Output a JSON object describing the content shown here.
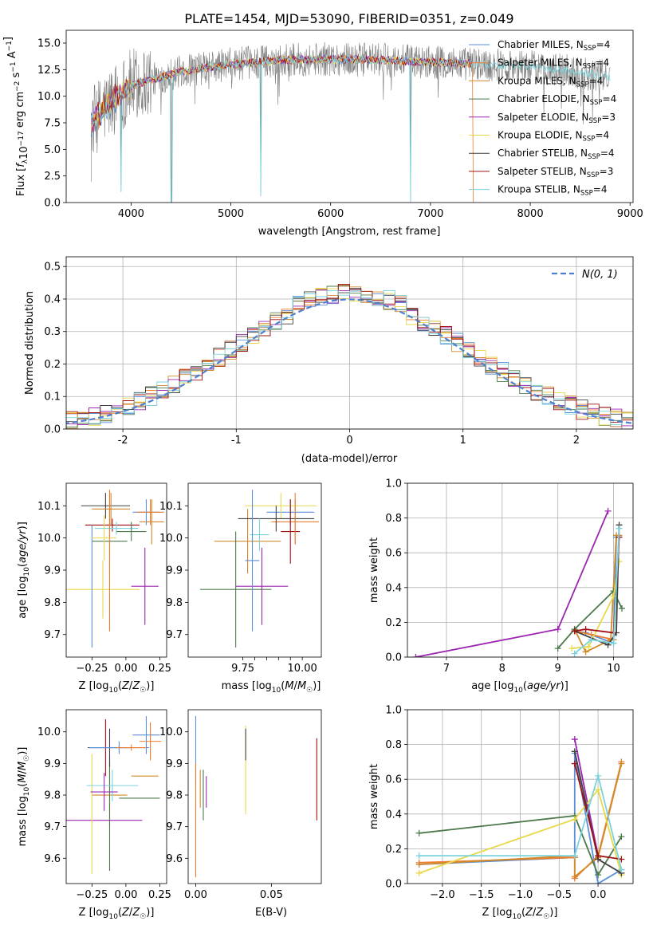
{
  "figure_title": "PLATE=1454, MJD=53090, FIBERID=0351, z=0.049",
  "series_names": [
    "Chabrier MILES, N_SSP=4",
    "Salpeter MILES, N_SSP=4",
    "Kroupa MILES, N_SSP=4",
    "Chabrier ELODIE, N_SSP=4",
    "Salpeter ELODIE, N_SSP=3",
    "Kroupa ELODIE, N_SSP=4",
    "Chabrier STELIB, N_SSP=4",
    "Salpeter STELIB, N_SSP=3",
    "Kroupa STELIB, N_SSP=4"
  ],
  "legend_labels": [
    {
      "pre": "Chabrier MILES, N",
      "sub": "SSP",
      "post": "=4"
    },
    {
      "pre": "Salpeter MILES, N",
      "sub": "SSP",
      "post": "=4"
    },
    {
      "pre": "Kroupa MILES, N",
      "sub": "SSP",
      "post": "=4"
    },
    {
      "pre": "Chabrier ELODIE, N",
      "sub": "SSP",
      "post": "=4"
    },
    {
      "pre": "Salpeter ELODIE, N",
      "sub": "SSP",
      "post": "=3"
    },
    {
      "pre": "Kroupa ELODIE, N",
      "sub": "SSP",
      "post": "=4"
    },
    {
      "pre": "Chabrier STELIB, N",
      "sub": "SSP",
      "post": "=4"
    },
    {
      "pre": "Salpeter STELIB, N",
      "sub": "SSP",
      "post": "=3"
    },
    {
      "pre": "Kroupa STELIB, N",
      "sub": "SSP",
      "post": "=4"
    }
  ],
  "colors": [
    "#5b8fd9",
    "#ed7d31",
    "#d08a2a",
    "#4d7a4d",
    "#9b27b0",
    "#e8d84a",
    "#404040",
    "#a01010",
    "#7ad3dc"
  ],
  "chart_data": [
    {
      "type": "line",
      "name": "spectrum",
      "xlabel": "wavelength [Angstrom, rest frame]",
      "ylabel": "Flux [f_λ 10^-17 erg cm^-2 s^-1 A^-1]",
      "xlim": [
        3350,
        9030
      ],
      "ylim": [
        0,
        16.2
      ],
      "xticks": [
        4000,
        5000,
        6000,
        7000,
        8000,
        9000
      ],
      "yticks": [
        0.0,
        2.5,
        5.0,
        7.5,
        10.0,
        12.5,
        15.0
      ],
      "data_range": [
        3600,
        8800
      ],
      "model_cutoff": 7420,
      "envelope": [
        [
          3600,
          7.5
        ],
        [
          3800,
          9.5
        ],
        [
          4000,
          11.0
        ],
        [
          4500,
          12.3
        ],
        [
          5000,
          13.0
        ],
        [
          5500,
          13.4
        ],
        [
          6000,
          13.5
        ],
        [
          6500,
          13.4
        ],
        [
          7000,
          13.2
        ],
        [
          7500,
          13.0
        ],
        [
          8000,
          12.8
        ],
        [
          8500,
          12.2
        ],
        [
          8800,
          11.8
        ]
      ],
      "deep_dips": [
        [
          3900,
          1.0
        ],
        [
          4405,
          0.0
        ],
        [
          5300,
          0.6
        ],
        [
          6800,
          0.0
        ]
      ],
      "legend_position": "upper-right"
    },
    {
      "type": "step",
      "name": "residual-histogram",
      "xlabel": "(data-model)/error",
      "ylabel": "Normed distribution",
      "xlim": [
        -2.5,
        2.5
      ],
      "ylim": [
        0,
        0.53
      ],
      "xticks": [
        -2,
        -1,
        0,
        1,
        2
      ],
      "yticks": [
        0.0,
        0.1,
        0.2,
        0.3,
        0.4,
        0.5
      ],
      "bin_width": 0.1,
      "gaussian_label": "N(0, 1)",
      "gaussian_peak": 0.399,
      "legend_position": "upper-right"
    },
    {
      "type": "errorbar",
      "name": "age-vs-Z",
      "xlabel": "Z [log10(Z/Z☉)]",
      "ylabel": "age [log10(age/yr)]",
      "xlim": [
        -0.44,
        0.3
      ],
      "ylim": [
        9.63,
        10.17
      ],
      "xticks": [
        -0.25,
        0.0,
        0.25
      ],
      "xticklabels": [
        "−0.25",
        "0.00",
        "0.25"
      ],
      "yticks": [
        9.7,
        9.8,
        9.9,
        10.0,
        10.1
      ],
      "points": [
        {
          "x": 0.15,
          "xerr": 0.1,
          "y": 10.08,
          "yerr": 0.04
        },
        {
          "x": 0.18,
          "xerr": 0.1,
          "y": 10.08,
          "yerr": 0.04
        },
        {
          "x": 0.19,
          "xerr": 0.09,
          "y": 10.05,
          "yerr": 0.07
        },
        {
          "x": -0.12,
          "xerr": 0.13,
          "y": 9.99,
          "yerr": 0.1
        },
        {
          "x": -0.36,
          "xerr": 0.0,
          "y": 9.84,
          "yerr": 0.0
        },
        {
          "x": -0.17,
          "xerr": 0.27,
          "y": 9.84,
          "yerr": 0.09
        },
        {
          "x": -0.15,
          "xerr": 0.18,
          "y": 10.1,
          "yerr": 0.04
        },
        {
          "x": -0.1,
          "xerr": 0.2,
          "y": 10.04,
          "yerr": 0.02
        },
        {
          "x": -0.07,
          "xerr": 0.16,
          "y": 10.03,
          "yerr": 0.02
        },
        {
          "x": -0.25,
          "xerr": 0.0,
          "y": 9.85,
          "yerr": 0.19
        },
        {
          "x": -0.12,
          "xerr": 0.0,
          "y": 9.93,
          "yerr": 0.22
        },
        {
          "x": -0.11,
          "xerr": 0.14,
          "y": 10.09,
          "yerr": 0.05
        },
        {
          "x": 0.04,
          "xerr": 0.11,
          "y": 10.02,
          "yerr": 0.03
        },
        {
          "x": 0.14,
          "xerr": 0.1,
          "y": 9.85,
          "yerr": 0.12
        },
        {
          "x": -0.16,
          "xerr": 0.09,
          "y": 10.0,
          "yerr": 0.07
        }
      ]
    },
    {
      "type": "errorbar",
      "name": "age-vs-mass",
      "xlabel": "mass [log10(M/M☉)]",
      "ylabel": "",
      "xlim": [
        9.52,
        10.08
      ],
      "ylim": [
        9.63,
        10.17
      ],
      "xticks": [
        9.75,
        9.8,
        9.85,
        9.9,
        9.95,
        10.0
      ],
      "xticklabels": [
        "9.75",
        "",
        "",
        "",
        "",
        "10.00"
      ],
      "yticks": [
        9.7,
        9.8,
        9.9,
        10.0,
        10.1
      ],
      "points": [
        {
          "x": 9.95,
          "xerr": 0.1,
          "y": 10.08,
          "yerr": 0.04
        },
        {
          "x": 9.97,
          "xerr": 0.1,
          "y": 10.05,
          "yerr": 0.07
        },
        {
          "x": 9.77,
          "xerr": 0.14,
          "y": 9.99,
          "yerr": 0.1
        },
        {
          "x": 9.72,
          "xerr": 0.15,
          "y": 9.84,
          "yerr": 0.18
        },
        {
          "x": 9.83,
          "xerr": 0.11,
          "y": 9.85,
          "yerr": 0.12
        },
        {
          "x": 9.91,
          "xerr": 0.15,
          "y": 10.1,
          "yerr": 0.04
        },
        {
          "x": 9.89,
          "xerr": 0.16,
          "y": 10.06,
          "yerr": 0.04
        },
        {
          "x": 9.95,
          "xerr": 0.04,
          "y": 10.02,
          "yerr": 0.1
        },
        {
          "x": 9.82,
          "xerr": 0.04,
          "y": 10.01,
          "yerr": 0.05
        },
        {
          "x": 9.79,
          "xerr": 0.03,
          "y": 9.93,
          "yerr": 0.22
        },
        {
          "x": 9.97,
          "xerr": 0.0,
          "y": 10.06,
          "yerr": 0.08
        }
      ]
    },
    {
      "type": "line",
      "name": "mass-weight-vs-age",
      "xlabel": "age [log10(age/yr)]",
      "ylabel": "mass weight",
      "xlim": [
        6.3,
        10.35
      ],
      "ylim": [
        0,
        1.0
      ],
      "xticks": [
        7,
        8,
        9,
        10
      ],
      "yticks": [
        0.0,
        0.2,
        0.4,
        0.6,
        0.8,
        1.0
      ],
      "series": [
        {
          "x": [
            9.3,
            9.5,
            10.0,
            10.05
          ],
          "y": [
            0.15,
            0.14,
            0.08,
            0.69
          ]
        },
        {
          "x": [
            9.3,
            9.6,
            10.0,
            10.1
          ],
          "y": [
            0.15,
            0.13,
            0.1,
            0.7
          ]
        },
        {
          "x": [
            9.3,
            9.5,
            9.95,
            10.05
          ],
          "y": [
            0.16,
            0.03,
            0.1,
            0.7
          ]
        },
        {
          "x": [
            9.0,
            9.3,
            10.0,
            10.15
          ],
          "y": [
            0.05,
            0.16,
            0.38,
            0.28
          ]
        },
        {
          "x": [
            6.45,
            9.0,
            9.9
          ],
          "y": [
            0.0,
            0.16,
            0.84
          ]
        },
        {
          "x": [
            9.25,
            9.55,
            10.0,
            10.1
          ],
          "y": [
            0.05,
            0.06,
            0.35,
            0.55
          ]
        },
        {
          "x": [
            9.3,
            9.9,
            10.05,
            10.1
          ],
          "y": [
            0.15,
            0.07,
            0.14,
            0.76
          ]
        },
        {
          "x": [
            9.3,
            9.5,
            10.0,
            10.1
          ],
          "y": [
            0.15,
            0.16,
            0.14,
            0.69
          ]
        },
        {
          "x": [
            9.3,
            9.6,
            10.0,
            10.1
          ],
          "y": [
            0.02,
            0.1,
            0.08,
            0.74
          ]
        }
      ]
    },
    {
      "type": "errorbar",
      "name": "mass-vs-Z",
      "xlabel": "Z [log10(Z/Z☉)]",
      "ylabel": "mass [log10(M/M☉)]",
      "xlim": [
        -0.44,
        0.3
      ],
      "ylim": [
        9.52,
        10.07
      ],
      "xticks": [
        -0.25,
        0.0,
        0.25
      ],
      "xticklabels": [
        "−0.25",
        "0.00",
        "0.25"
      ],
      "yticks": [
        9.6,
        9.7,
        9.8,
        9.9,
        10.0
      ],
      "points": [
        {
          "x": 0.15,
          "xerr": 0.1,
          "y": 9.99,
          "yerr": 0.06
        },
        {
          "x": 0.18,
          "xerr": 0.08,
          "y": 9.97,
          "yerr": 0.06
        },
        {
          "x": -0.12,
          "xerr": 0.13,
          "y": 9.8,
          "yerr": 0.1
        },
        {
          "x": -0.12,
          "xerr": 0.0,
          "y": 9.74,
          "yerr": 0.18
        },
        {
          "x": -0.16,
          "xerr": 0.28,
          "y": 9.72,
          "yerr": 0.0
        },
        {
          "x": -0.25,
          "xerr": 0.0,
          "y": 9.74,
          "yerr": 0.19
        },
        {
          "x": -0.12,
          "xerr": 0.16,
          "y": 9.95,
          "yerr": 0.06
        },
        {
          "x": -0.15,
          "xerr": 0.0,
          "y": 9.95,
          "yerr": 0.09
        },
        {
          "x": -0.1,
          "xerr": 0.19,
          "y": 9.83,
          "yerr": 0.05
        },
        {
          "x": -0.05,
          "xerr": 0.22,
          "y": 9.95,
          "yerr": 0.02
        },
        {
          "x": 0.04,
          "xerr": 0.11,
          "y": 9.95,
          "yerr": 0.01
        },
        {
          "x": 0.14,
          "xerr": 0.1,
          "y": 9.86,
          "yerr": 0.0
        },
        {
          "x": 0.1,
          "xerr": 0.15,
          "y": 9.79,
          "yerr": 0.0
        },
        {
          "x": -0.16,
          "xerr": 0.1,
          "y": 9.81,
          "yerr": 0.06
        }
      ]
    },
    {
      "type": "errorbar",
      "name": "mass-vs-EBV",
      "xlabel": "E(B-V)",
      "ylabel": "",
      "xlim": [
        -0.005,
        0.083
      ],
      "ylim": [
        9.52,
        10.07
      ],
      "xticks": [
        0.0,
        0.05
      ],
      "xticklabels": [
        "0.00",
        "0.05"
      ],
      "yticks": [
        9.6,
        9.7,
        9.8,
        9.9,
        10.0
      ],
      "points": [
        {
          "x": 0.0,
          "y": 9.94,
          "yerr": 0.11
        },
        {
          "x": 0.0,
          "y": 9.72,
          "yerr": 0.18
        },
        {
          "x": 0.003,
          "y": 9.82,
          "yerr": 0.06
        },
        {
          "x": 0.005,
          "y": 9.8,
          "yerr": 0.08
        },
        {
          "x": 0.007,
          "y": 9.81,
          "yerr": 0.05
        },
        {
          "x": 0.033,
          "y": 9.88,
          "yerr": 0.14
        },
        {
          "x": 0.033,
          "y": 9.96,
          "yerr": 0.05
        },
        {
          "x": 0.08,
          "y": 9.85,
          "yerr": 0.13
        }
      ]
    },
    {
      "type": "line",
      "name": "mass-weight-vs-Z",
      "xlabel": "Z [log10(Z/Z☉)]",
      "ylabel": "mass weight",
      "xlim": [
        -2.45,
        0.45
      ],
      "ylim": [
        0,
        1.0
      ],
      "xticks": [
        -2.0,
        -1.5,
        -1.0,
        -0.5,
        0.0
      ],
      "xticklabels": [
        "−2.0",
        "−1.5",
        "−1.0",
        "−0.5",
        "0.0"
      ],
      "yticks": [
        0.0,
        0.2,
        0.4,
        0.6,
        0.8,
        1.0
      ],
      "series": [
        {
          "x": [
            -2.3,
            -0.3,
            -0.3,
            0.0,
            0.3
          ],
          "y": [
            0.11,
            0.15,
            0.75,
            0.0,
            0.08
          ]
        },
        {
          "x": [
            -2.3,
            -0.3,
            -0.3,
            0.0,
            0.3
          ],
          "y": [
            0.12,
            0.15,
            0.03,
            0.16,
            0.7
          ]
        },
        {
          "x": [
            -2.3,
            -0.3,
            -0.3,
            0.0,
            0.3
          ],
          "y": [
            0.11,
            0.16,
            0.04,
            0.15,
            0.69
          ]
        },
        {
          "x": [
            -2.3,
            -0.3,
            0.0,
            0.3
          ],
          "y": [
            0.29,
            0.39,
            0.05,
            0.27
          ]
        },
        {
          "x": [
            -0.3,
            0.0
          ],
          "y": [
            0.83,
            0.16
          ]
        },
        {
          "x": [
            -2.3,
            -0.3,
            0.0,
            0.3
          ],
          "y": [
            0.06,
            0.37,
            0.54,
            0.05
          ]
        },
        {
          "x": [
            -0.3,
            0.0,
            0.3
          ],
          "y": [
            0.76,
            0.14,
            0.06
          ]
        },
        {
          "x": [
            -0.3,
            0.0,
            0.3
          ],
          "y": [
            0.69,
            0.16,
            0.14
          ]
        },
        {
          "x": [
            -2.3,
            -0.3,
            0.0,
            0.3
          ],
          "y": [
            0.16,
            0.16,
            0.62,
            0.08
          ]
        }
      ]
    }
  ]
}
